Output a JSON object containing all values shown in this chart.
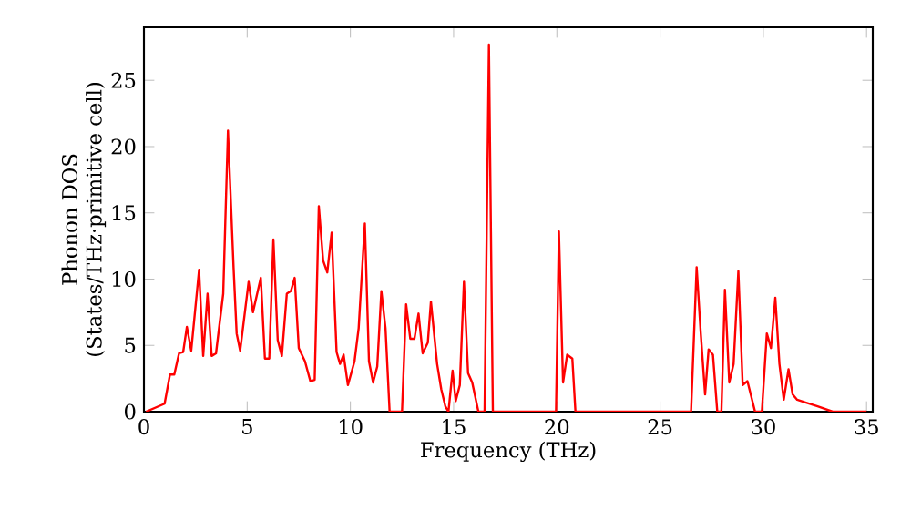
{
  "chart_data": {
    "type": "line",
    "xlabel": "Frequency (THz)",
    "ylabel": "Phonon DOS\n(States/THz·primitive cell)",
    "xlim": [
      0,
      35.3
    ],
    "ylim": [
      0,
      29
    ],
    "xticks": [
      0,
      5,
      10,
      15,
      20,
      25,
      30,
      35
    ],
    "yticks": [
      0,
      5,
      10,
      15,
      20,
      25
    ],
    "grid": false,
    "marker": "none",
    "line_style": "solid",
    "series": [
      {
        "color": "#ff0000",
        "x": [
          0.1,
          1.0,
          1.26,
          1.47,
          1.7,
          1.9,
          2.08,
          2.29,
          2.67,
          2.87,
          3.08,
          3.28,
          3.49,
          3.84,
          4.07,
          4.34,
          4.49,
          4.66,
          5.07,
          5.28,
          5.66,
          5.86,
          6.07,
          6.27,
          6.48,
          6.68,
          6.92,
          7.12,
          7.3,
          7.5,
          7.8,
          8.06,
          8.27,
          8.47,
          8.68,
          8.88,
          9.09,
          9.33,
          9.5,
          9.67,
          9.88,
          10.2,
          10.4,
          10.7,
          10.9,
          11.1,
          11.3,
          11.5,
          11.7,
          11.9,
          12.5,
          12.7,
          12.9,
          13.1,
          13.3,
          13.5,
          13.75,
          13.9,
          14.2,
          14.4,
          14.6,
          14.75,
          14.95,
          15.1,
          15.3,
          15.5,
          15.7,
          15.9,
          16.2,
          16.5,
          16.71,
          16.9,
          19.96,
          20.1,
          20.3,
          20.5,
          20.75,
          20.9,
          26.5,
          26.77,
          26.97,
          27.18,
          27.35,
          27.56,
          27.77,
          27.97,
          28.14,
          28.35,
          28.56,
          28.79,
          29.0,
          29.23,
          29.6,
          29.93,
          30.17,
          30.37,
          30.58,
          30.78,
          30.99,
          31.22,
          31.42,
          31.64,
          32.04,
          32.63,
          33.36,
          35.0
        ],
        "values": [
          0,
          0.6,
          2.8,
          2.8,
          4.4,
          4.5,
          6.4,
          4.6,
          10.7,
          4.2,
          8.9,
          4.2,
          4.4,
          8.9,
          21.2,
          10.9,
          5.9,
          4.6,
          9.8,
          7.5,
          10.1,
          4.0,
          4.0,
          13.0,
          5.4,
          4.2,
          8.9,
          9.1,
          10.1,
          4.8,
          3.8,
          2.3,
          2.4,
          15.5,
          11.4,
          10.5,
          13.5,
          4.5,
          3.6,
          4.3,
          2.0,
          3.8,
          6.3,
          14.2,
          3.8,
          2.2,
          3.4,
          9.1,
          6.3,
          0,
          0,
          8.1,
          5.5,
          5.5,
          7.4,
          4.4,
          5.2,
          8.3,
          3.6,
          1.7,
          0.4,
          0,
          3.1,
          0.8,
          2.0,
          9.8,
          2.9,
          2.2,
          0,
          0,
          27.7,
          0,
          0,
          13.6,
          2.2,
          4.3,
          4.0,
          0,
          0,
          10.9,
          5.9,
          1.3,
          4.7,
          4.3,
          0,
          0,
          9.2,
          2.2,
          3.6,
          10.6,
          2.0,
          2.3,
          0,
          0,
          5.9,
          4.8,
          8.6,
          3.6,
          0.9,
          3.2,
          1.3,
          0.9,
          0.7,
          0.4,
          0,
          0
        ]
      }
    ]
  }
}
